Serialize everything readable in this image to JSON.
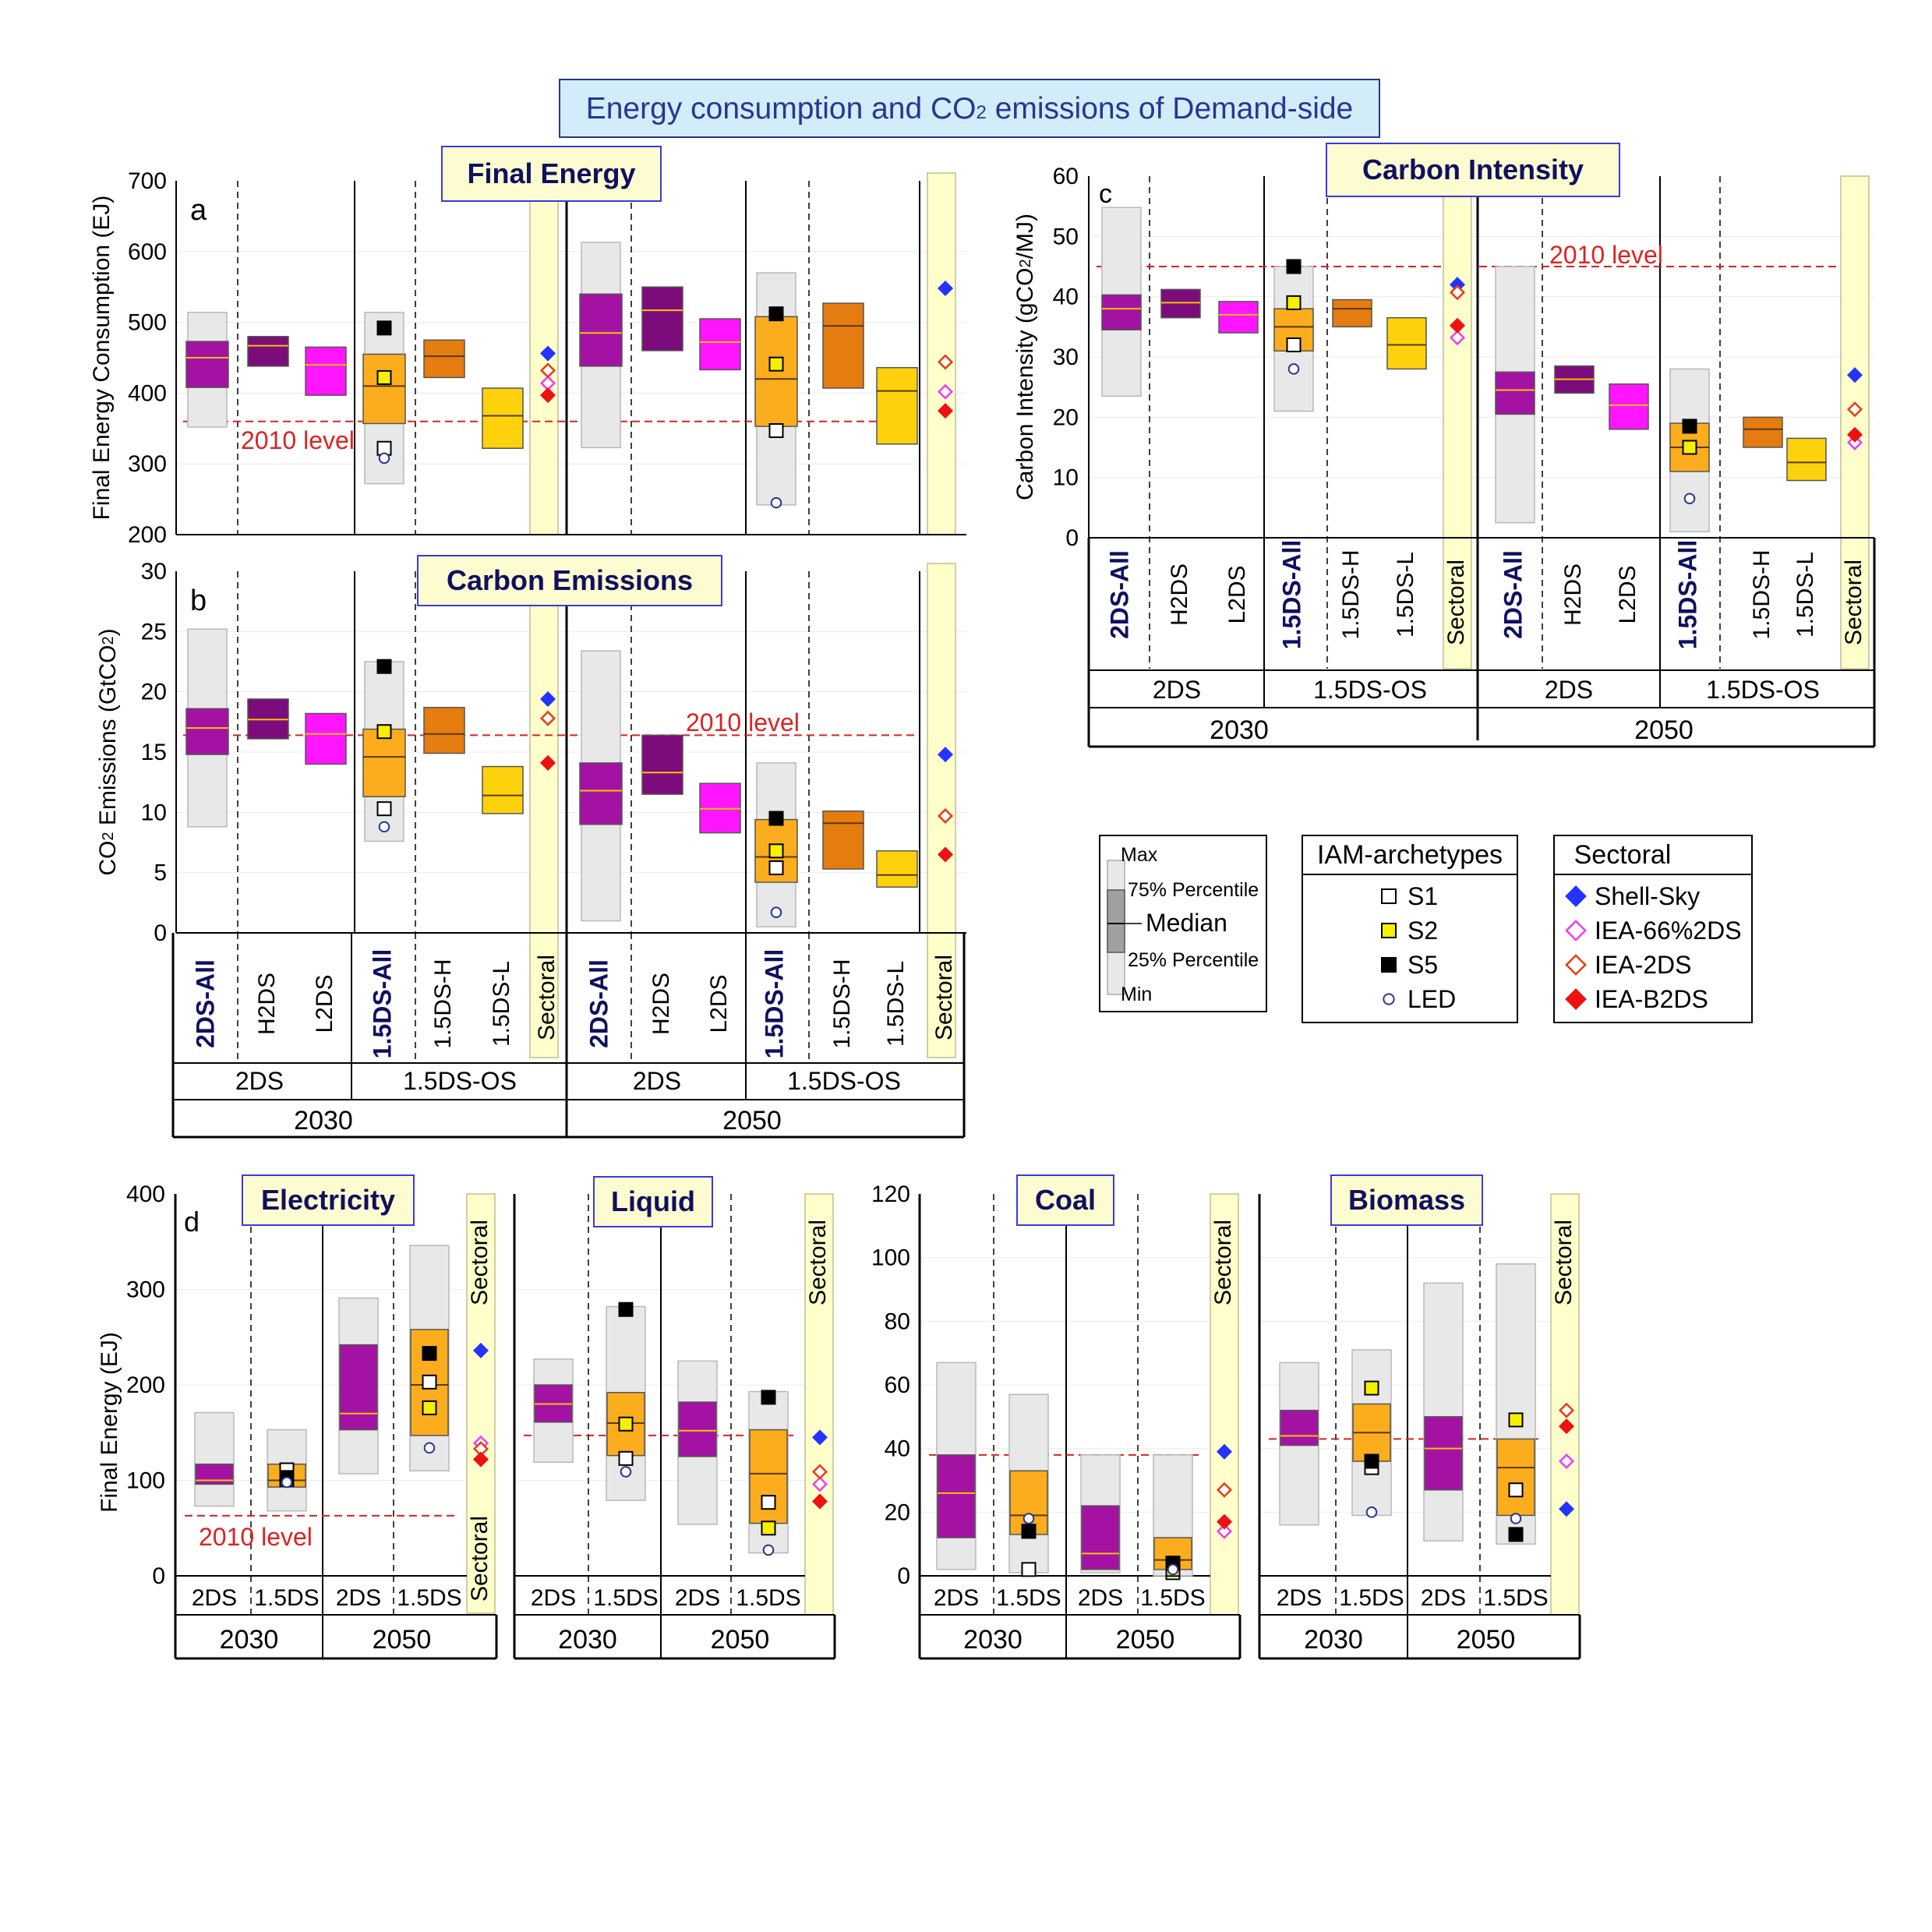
{
  "header": {
    "title_pre": "Energy consumption and CO",
    "title_sub": "2",
    "title_post": " emissions of Demand-side"
  },
  "scenario_labels": [
    "2DS-All",
    "H2DS",
    "L2DS",
    "1.5DS-All",
    "1.5DS-H",
    "1.5DS-L",
    "Sectoral"
  ],
  "group_labels": [
    "2DS",
    "1.5DS-OS"
  ],
  "year_labels": [
    "2030",
    "2050"
  ],
  "colors": {
    "2DS-All": "#a412a4",
    "H2DS": "#7c0c7c",
    "L2DS": "#ff15ff",
    "1.5DS-All": "#fbad1d",
    "1.5DS-H": "#e57c10",
    "1.5DS-L": "#fdd20c",
    "range": "#e8e8e8",
    "sectoral_bg": "#ffffcc",
    "ref_line": "#dd2222",
    "title_text": "#2b3590",
    "panel_title_bg": "#fdfbd0",
    "s1": "#ffffff",
    "s2": "#f6ef00",
    "s5": "#000000",
    "led": "#ffffff",
    "shell_sky": "#2433ff",
    "iea_66_2ds": "#f13cf1",
    "iea_2ds": "#e83d11",
    "iea_b2ds": "#ee1111"
  },
  "legend": {
    "percentile": {
      "max": "Max",
      "p75": "75% Percentile",
      "median": "Median",
      "p25": "25% Percentile",
      "min": "Min"
    },
    "iam": {
      "title": "IAM-archetypes",
      "items": [
        "S1",
        "S2",
        "S5",
        "LED"
      ]
    },
    "sectoral": {
      "title": "Sectoral",
      "items": [
        "Shell-Sky",
        "IEA-66%2DS",
        "IEA-2DS",
        "IEA-B2DS"
      ]
    }
  },
  "chart_data": [
    {
      "id": "a",
      "type": "box",
      "title": "Final Energy",
      "ylabel": "Final Energy Consumption (EJ)",
      "ylim": [
        200,
        700
      ],
      "yticks": [
        200,
        300,
        400,
        500,
        600,
        700
      ],
      "ref_line": {
        "label": "2010 level",
        "value": 360
      },
      "series": [
        {
          "year": "2030",
          "scenario": "2DS-All",
          "min": 352,
          "q1": 408,
          "median": 450,
          "q3": 473,
          "max": 514
        },
        {
          "year": "2030",
          "scenario": "H2DS",
          "q1": 438,
          "median": 467,
          "q3": 480
        },
        {
          "year": "2030",
          "scenario": "L2DS",
          "q1": 397,
          "median": 440,
          "q3": 465
        },
        {
          "year": "2030",
          "scenario": "1.5DS-All",
          "min": 272,
          "q1": 357,
          "median": 410,
          "q3": 455,
          "max": 514,
          "s1": 322,
          "s2": 422,
          "s5": 492,
          "led": 308
        },
        {
          "year": "2030",
          "scenario": "1.5DS-H",
          "q1": 422,
          "median": 452,
          "q3": 475
        },
        {
          "year": "2030",
          "scenario": "1.5DS-L",
          "q1": 322,
          "median": 368,
          "q3": 407
        },
        {
          "year": "2030",
          "scenario": "Sectoral",
          "shell_sky": 456,
          "iea_66_2ds": 414,
          "iea_2ds": 432,
          "iea_b2ds": 397
        },
        {
          "year": "2050",
          "scenario": "2DS-All",
          "min": 323,
          "q1": 438,
          "median": 485,
          "q3": 540,
          "max": 613
        },
        {
          "year": "2050",
          "scenario": "H2DS",
          "q1": 460,
          "median": 517,
          "q3": 550
        },
        {
          "year": "2050",
          "scenario": "L2DS",
          "q1": 433,
          "median": 472,
          "q3": 505
        },
        {
          "year": "2050",
          "scenario": "1.5DS-All",
          "min": 242,
          "q1": 353,
          "median": 420,
          "q3": 508,
          "max": 570,
          "s1": 347,
          "s2": 441,
          "s5": 512,
          "led": 245
        },
        {
          "year": "2050",
          "scenario": "1.5DS-H",
          "q1": 407,
          "median": 495,
          "q3": 527
        },
        {
          "year": "2050",
          "scenario": "1.5DS-L",
          "q1": 328,
          "median": 403,
          "q3": 436
        },
        {
          "year": "2050",
          "scenario": "Sectoral",
          "shell_sky": 548,
          "iea_66_2ds": 402,
          "iea_2ds": 444,
          "iea_b2ds": 375
        }
      ]
    },
    {
      "id": "b",
      "type": "box",
      "title": "Carbon Emissions",
      "ylabel_pre": "CO",
      "ylabel_sub": "2",
      "ylabel_mid": " Emissions (GtCO",
      "ylabel_sub2": "2",
      "ylabel_post": ")",
      "ylim": [
        0,
        30
      ],
      "yticks": [
        0,
        5,
        10,
        15,
        20,
        25,
        30
      ],
      "ref_line": {
        "label": "2010 level",
        "value": 16.4
      },
      "series": [
        {
          "year": "2030",
          "scenario": "2DS-All",
          "min": 8.8,
          "q1": 14.8,
          "median": 17,
          "q3": 18.6,
          "max": 25.2
        },
        {
          "year": "2030",
          "scenario": "H2DS",
          "q1": 16.1,
          "median": 17.7,
          "q3": 19.4
        },
        {
          "year": "2030",
          "scenario": "L2DS",
          "q1": 14,
          "median": 16.5,
          "q3": 18.2
        },
        {
          "year": "2030",
          "scenario": "1.5DS-All",
          "min": 7.6,
          "q1": 11.3,
          "median": 14.6,
          "q3": 16.9,
          "max": 22.5,
          "s1": 10.3,
          "s2": 16.7,
          "s5": 22.1,
          "led": 8.8
        },
        {
          "year": "2030",
          "scenario": "1.5DS-H",
          "q1": 14.9,
          "median": 16.5,
          "q3": 18.7
        },
        {
          "year": "2030",
          "scenario": "1.5DS-L",
          "q1": 9.9,
          "median": 11.4,
          "q3": 13.8
        },
        {
          "year": "2030",
          "scenario": "Sectoral",
          "shell_sky": 19.4,
          "iea_66_2ds": null,
          "iea_2ds": 17.8,
          "iea_b2ds": 14.1
        },
        {
          "year": "2050",
          "scenario": "2DS-All",
          "min": 1,
          "q1": 9,
          "median": 11.8,
          "q3": 14.1,
          "max": 23.4
        },
        {
          "year": "2050",
          "scenario": "H2DS",
          "q1": 11.5,
          "median": 13.3,
          "q3": 16.4
        },
        {
          "year": "2050",
          "scenario": "L2DS",
          "q1": 8.3,
          "median": 10.3,
          "q3": 12.4
        },
        {
          "year": "2050",
          "scenario": "1.5DS-All",
          "min": 0.5,
          "q1": 4.2,
          "median": 6.3,
          "q3": 9.4,
          "max": 14.1,
          "s1": 5.4,
          "s2": 6.8,
          "s5": 9.5,
          "led": 1.7
        },
        {
          "year": "2050",
          "scenario": "1.5DS-H",
          "q1": 5.3,
          "median": 9.1,
          "q3": 10.1
        },
        {
          "year": "2050",
          "scenario": "1.5DS-L",
          "q1": 3.8,
          "median": 4.8,
          "q3": 6.8
        },
        {
          "year": "2050",
          "scenario": "Sectoral",
          "shell_sky": 14.8,
          "iea_66_2ds": null,
          "iea_2ds": 9.7,
          "iea_b2ds": 6.5
        }
      ]
    },
    {
      "id": "c",
      "type": "box",
      "title": "Carbon Intensity",
      "ylabel_pre": "Carbon Intensity (gCO",
      "ylabel_sub": "2",
      "ylabel_post": "/MJ)",
      "ylim": [
        0,
        60
      ],
      "yticks": [
        0,
        10,
        20,
        30,
        40,
        50,
        60
      ],
      "ref_line": {
        "label": "2010 level",
        "value": 45
      },
      "series": [
        {
          "year": "2030",
          "scenario": "2DS-All",
          "min": 23.5,
          "q1": 34.5,
          "median": 38,
          "q3": 40.3,
          "max": 54.8
        },
        {
          "year": "2030",
          "scenario": "H2DS",
          "q1": 36.5,
          "median": 39,
          "q3": 41.2
        },
        {
          "year": "2030",
          "scenario": "L2DS",
          "q1": 34,
          "median": 37,
          "q3": 39.2
        },
        {
          "year": "2030",
          "scenario": "1.5DS-All",
          "min": 21,
          "q1": 31,
          "median": 35,
          "q3": 38,
          "max": 45,
          "s1": 32,
          "s2": 39,
          "s5": 45,
          "led": 28
        },
        {
          "year": "2030",
          "scenario": "1.5DS-H",
          "q1": 35,
          "median": 38,
          "q3": 39.5
        },
        {
          "year": "2030",
          "scenario": "1.5DS-L",
          "q1": 28,
          "median": 32,
          "q3": 36.5
        },
        {
          "year": "2030",
          "scenario": "Sectoral",
          "shell_sky": 42,
          "iea_66_2ds": 33.2,
          "iea_2ds": 40.7,
          "iea_b2ds": 35.2
        },
        {
          "year": "2050",
          "scenario": "2DS-All",
          "min": 2.5,
          "q1": 20.5,
          "median": 24.5,
          "q3": 27.5,
          "max": 45
        },
        {
          "year": "2050",
          "scenario": "H2DS",
          "q1": 24,
          "median": 26.3,
          "q3": 28.5
        },
        {
          "year": "2050",
          "scenario": "L2DS",
          "q1": 18,
          "median": 22,
          "q3": 25.5
        },
        {
          "year": "2050",
          "scenario": "1.5DS-All",
          "min": 1,
          "q1": 11,
          "median": 15,
          "q3": 19,
          "max": 28,
          "s1": 15,
          "s2": 15,
          "s5": 18.5,
          "led": 6.5
        },
        {
          "year": "2050",
          "scenario": "1.5DS-H",
          "q1": 15,
          "median": 18,
          "q3": 20
        },
        {
          "year": "2050",
          "scenario": "1.5DS-L",
          "q1": 9.5,
          "median": 12.5,
          "q3": 16.5
        },
        {
          "year": "2050",
          "scenario": "Sectoral",
          "shell_sky": 27,
          "iea_66_2ds": 15.8,
          "iea_2ds": 21.3,
          "iea_b2ds": 17.1
        }
      ]
    },
    {
      "id": "d",
      "type": "box",
      "ylabel": "Final Energy (EJ)",
      "categories": [
        "2DS",
        "1.5DS"
      ],
      "subpanels": [
        {
          "title": "Electricity",
          "ylim": [
            0,
            400
          ],
          "yticks": [
            0,
            100,
            200,
            300,
            400
          ],
          "ref_line": {
            "label": "2010 level",
            "value": 63
          },
          "series": [
            {
              "year": "2030",
              "scenario": "2DS",
              "min": 73,
              "q1": 96,
              "median": 100,
              "q3": 117,
              "max": 171
            },
            {
              "year": "2030",
              "scenario": "1.5DS",
              "min": 68,
              "q1": 93,
              "median": 100,
              "q3": 117,
              "max": 153,
              "s1": 111,
              "s2": 101,
              "s5": 103,
              "led": 98
            },
            {
              "year": "2050",
              "scenario": "2DS",
              "min": 107,
              "q1": 153,
              "median": 170,
              "q3": 242,
              "max": 291
            },
            {
              "year": "2050",
              "scenario": "1.5DS",
              "min": 110,
              "q1": 147,
              "median": 200,
              "q3": 258,
              "max": 346,
              "s1": 203,
              "s2": 176,
              "s5": 233,
              "led": 134
            },
            {
              "scenario": "Sectoral",
              "shell_sky": 236,
              "iea_66_2ds": 139,
              "iea_2ds": 133,
              "iea_b2ds": 122
            }
          ]
        },
        {
          "title": "Liquid",
          "ylim": [
            0,
            400
          ],
          "yticks": [
            0,
            100,
            200,
            300,
            400
          ],
          "ref_line": {
            "value": 147
          },
          "series": [
            {
              "year": "2030",
              "scenario": "2DS",
              "min": 119,
              "q1": 161,
              "median": 180,
              "q3": 200,
              "max": 227
            },
            {
              "year": "2030",
              "scenario": "1.5DS",
              "min": 79,
              "q1": 126,
              "median": 160,
              "q3": 192,
              "max": 282,
              "s1": 123,
              "s2": 159,
              "s5": 279,
              "led": 109
            },
            {
              "year": "2050",
              "scenario": "2DS",
              "min": 54,
              "q1": 125,
              "median": 152,
              "q3": 182,
              "max": 225
            },
            {
              "year": "2050",
              "scenario": "1.5DS",
              "min": 24,
              "q1": 55,
              "median": 107,
              "q3": 153,
              "max": 193,
              "s1": 77,
              "s2": 50,
              "s5": 187,
              "led": 27
            },
            {
              "scenario": "Sectoral",
              "shell_sky": 145,
              "iea_66_2ds": 96,
              "iea_2ds": 109,
              "iea_b2ds": 78
            }
          ]
        },
        {
          "title": "Coal",
          "ylim": [
            0,
            120
          ],
          "yticks": [
            0,
            20,
            40,
            60,
            80,
            100,
            120
          ],
          "ref_line": {
            "value": 38
          },
          "series": [
            {
              "year": "2030",
              "scenario": "2DS",
              "min": 2,
              "q1": 12,
              "median": 26,
              "q3": 38,
              "max": 67
            },
            {
              "year": "2030",
              "scenario": "1.5DS",
              "min": 1,
              "q1": 13,
              "median": 19,
              "q3": 33,
              "max": 57,
              "s1": 2,
              "s2": 14,
              "s5": 14,
              "led": 18
            },
            {
              "year": "2050",
              "scenario": "2DS",
              "min": 1,
              "q1": 2,
              "median": 7,
              "q3": 22,
              "max": 38
            },
            {
              "year": "2050",
              "scenario": "1.5DS",
              "min": 0,
              "q1": 2,
              "median": 5,
              "q3": 12,
              "max": 38,
              "s1": 1,
              "s2": 2,
              "s5": 4,
              "led": 2
            },
            {
              "scenario": "Sectoral",
              "shell_sky": 39,
              "iea_66_2ds": 14,
              "iea_2ds": 27,
              "iea_b2ds": 17
            }
          ]
        },
        {
          "title": "Biomass",
          "ylim": [
            0,
            120
          ],
          "yticks": [
            0,
            20,
            40,
            60,
            80,
            100,
            120
          ],
          "ref_line": {
            "value": 43
          },
          "series": [
            {
              "year": "2030",
              "scenario": "2DS",
              "min": 16,
              "q1": 41,
              "median": 44,
              "q3": 52,
              "max": 67
            },
            {
              "year": "2030",
              "scenario": "1.5DS",
              "min": 19,
              "q1": 36,
              "median": 45,
              "q3": 54,
              "max": 71,
              "s1": 34,
              "s2": 59,
              "s5": 36,
              "led": 20
            },
            {
              "year": "2050",
              "scenario": "2DS",
              "min": 11,
              "q1": 27,
              "median": 40,
              "q3": 50,
              "max": 92
            },
            {
              "year": "2050",
              "scenario": "1.5DS",
              "min": 10,
              "q1": 19,
              "median": 34,
              "q3": 43,
              "max": 98,
              "s1": 27,
              "s2": 49,
              "s5": 13,
              "led": 18
            },
            {
              "scenario": "Sectoral",
              "shell_sky": 21,
              "iea_66_2ds": 36,
              "iea_2ds": 52,
              "iea_b2ds": 47
            }
          ]
        }
      ]
    }
  ]
}
